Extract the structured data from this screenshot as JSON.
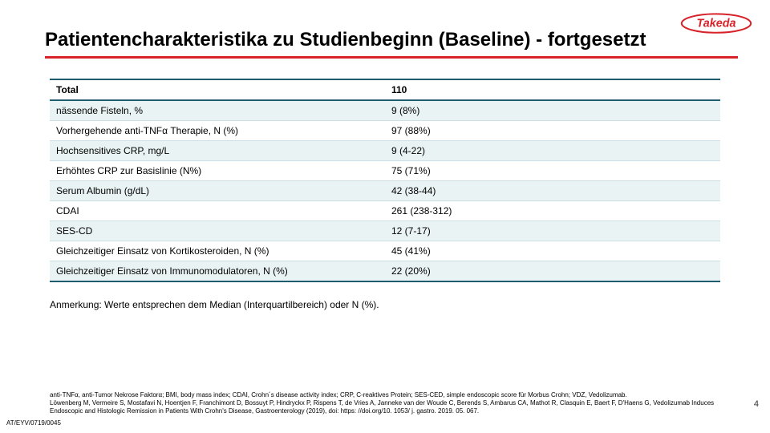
{
  "logo": {
    "text": "Takeda",
    "color": "#d8222a"
  },
  "title": "Patientencharakteristika zu Studienbeginn (Baseline) - fortgesetzt",
  "table": {
    "header": [
      "Total",
      "110"
    ],
    "rows": [
      [
        "nässende Fisteln, %",
        "9 (8%)"
      ],
      [
        "Vorhergehende anti-TNFα Therapie, N (%)",
        "97 (88%)"
      ],
      [
        "Hochsensitives CRP, mg/L",
        "9 (4-22)"
      ],
      [
        "Erhöhtes CRP zur Basislinie (N%)",
        "75 (71%)"
      ],
      [
        "Serum Albumin (g/dL)",
        "42 (38-44)"
      ],
      [
        "CDAI",
        "261 (238-312)"
      ],
      [
        "SES-CD",
        "12 (7-17)"
      ],
      [
        "Gleichzeitiger Einsatz von Kortikosteroiden, N (%)",
        "45 (41%)"
      ],
      [
        "Gleichzeitiger Einsatz von Immunomodulatoren, N (%)",
        "22 (20%)"
      ]
    ],
    "border_color": "#1e5c6e",
    "alt_row_bg": "#eaf3f4"
  },
  "note": "Anmerkung: Werte entsprechen dem Median (Interquartilbereich) oder N (%).",
  "footnote": {
    "line1": "anti-TNFα, anti-Tumor Nekrose Faktorα; BMI, body mass index; CDAI, Crohn´s disease activity index; CRP, C-reaktives Protein; SES-CED, simple endoscopic score für Morbus Crohn; VDZ, Vedolizumab.",
    "line2": "Löwenberg M, Vermeire S, Mostafavi N, Hoentjen F, Franchimont D, Bossuyt P, Hindryckx P, Rispens T, de Vries A, Janneke van der Woude C, Berends S, Ambarus CA, Mathot R,  Clasquin E, Baert F, D'Haens G, Vedolizumab Induces Endoscopic and Histologic Remission in Patients With Crohn's Disease, Gastroenterology (2019), doi: https: //doi.org/10. 1053/ j. gastro. 2019. 05. 067."
  },
  "approval": "AT/EYV/0719/0045",
  "page": "4"
}
